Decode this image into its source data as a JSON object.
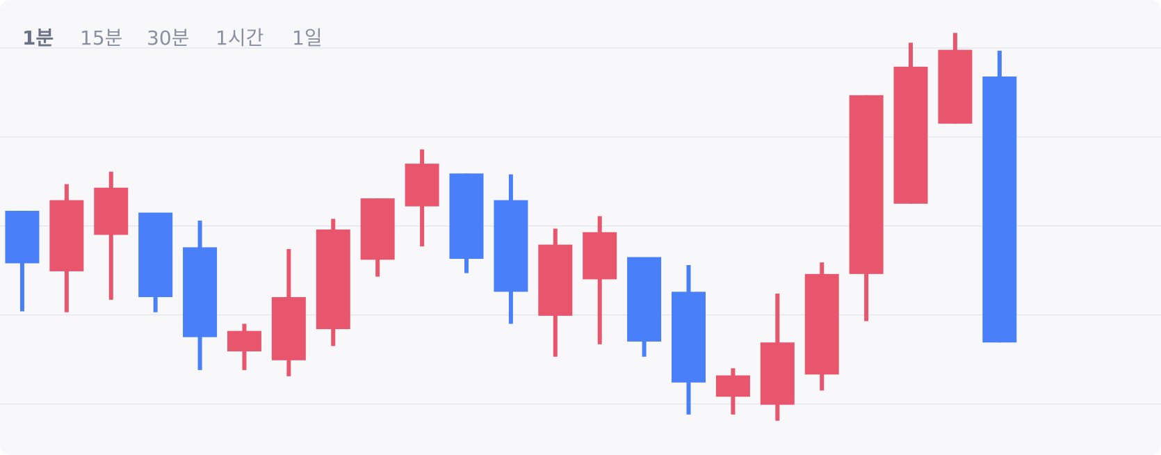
{
  "tabs": {
    "items": [
      "1분",
      "15분",
      "30분",
      "1시간",
      "1일"
    ],
    "selected": 0
  },
  "chart_data": {
    "type": "candlestick",
    "open": [
      2.17,
      1.49,
      1.9,
      2.15,
      1.76,
      0.59,
      0.49,
      0.84,
      1.62,
      2.22,
      2.59,
      2.29,
      0.99,
      1.4,
      1.65,
      1.26,
      0.08,
      -0.01,
      0.33,
      1.46,
      2.25,
      3.15,
      3.68
    ],
    "high": [
      2.17,
      2.47,
      2.61,
      2.15,
      2.06,
      0.9,
      1.74,
      2.08,
      2.31,
      2.86,
      2.59,
      2.58,
      1.97,
      2.11,
      1.65,
      1.56,
      0.4,
      1.24,
      1.59,
      3.47,
      4.06,
      4.17,
      3.97
    ],
    "low": [
      1.04,
      1.03,
      1.17,
      1.03,
      0.38,
      0.38,
      0.31,
      0.65,
      1.43,
      1.77,
      1.47,
      0.9,
      0.53,
      0.67,
      0.53,
      -0.12,
      -0.12,
      -0.19,
      0.15,
      0.93,
      2.25,
      3.15,
      0.69
    ],
    "close": [
      1.58,
      2.29,
      2.43,
      1.2,
      0.75,
      0.82,
      1.2,
      1.96,
      2.31,
      2.7,
      1.63,
      1.26,
      1.79,
      1.93,
      0.7,
      0.24,
      0.32,
      0.69,
      1.46,
      3.47,
      3.79,
      3.98,
      0.69
    ],
    "up_color": "#e8566e",
    "down_color": "#4a7ffa",
    "ylim": [
      -0.575,
      4.54
    ],
    "yticks": [
      0,
      1,
      2,
      3,
      4
    ],
    "grid": true
  }
}
